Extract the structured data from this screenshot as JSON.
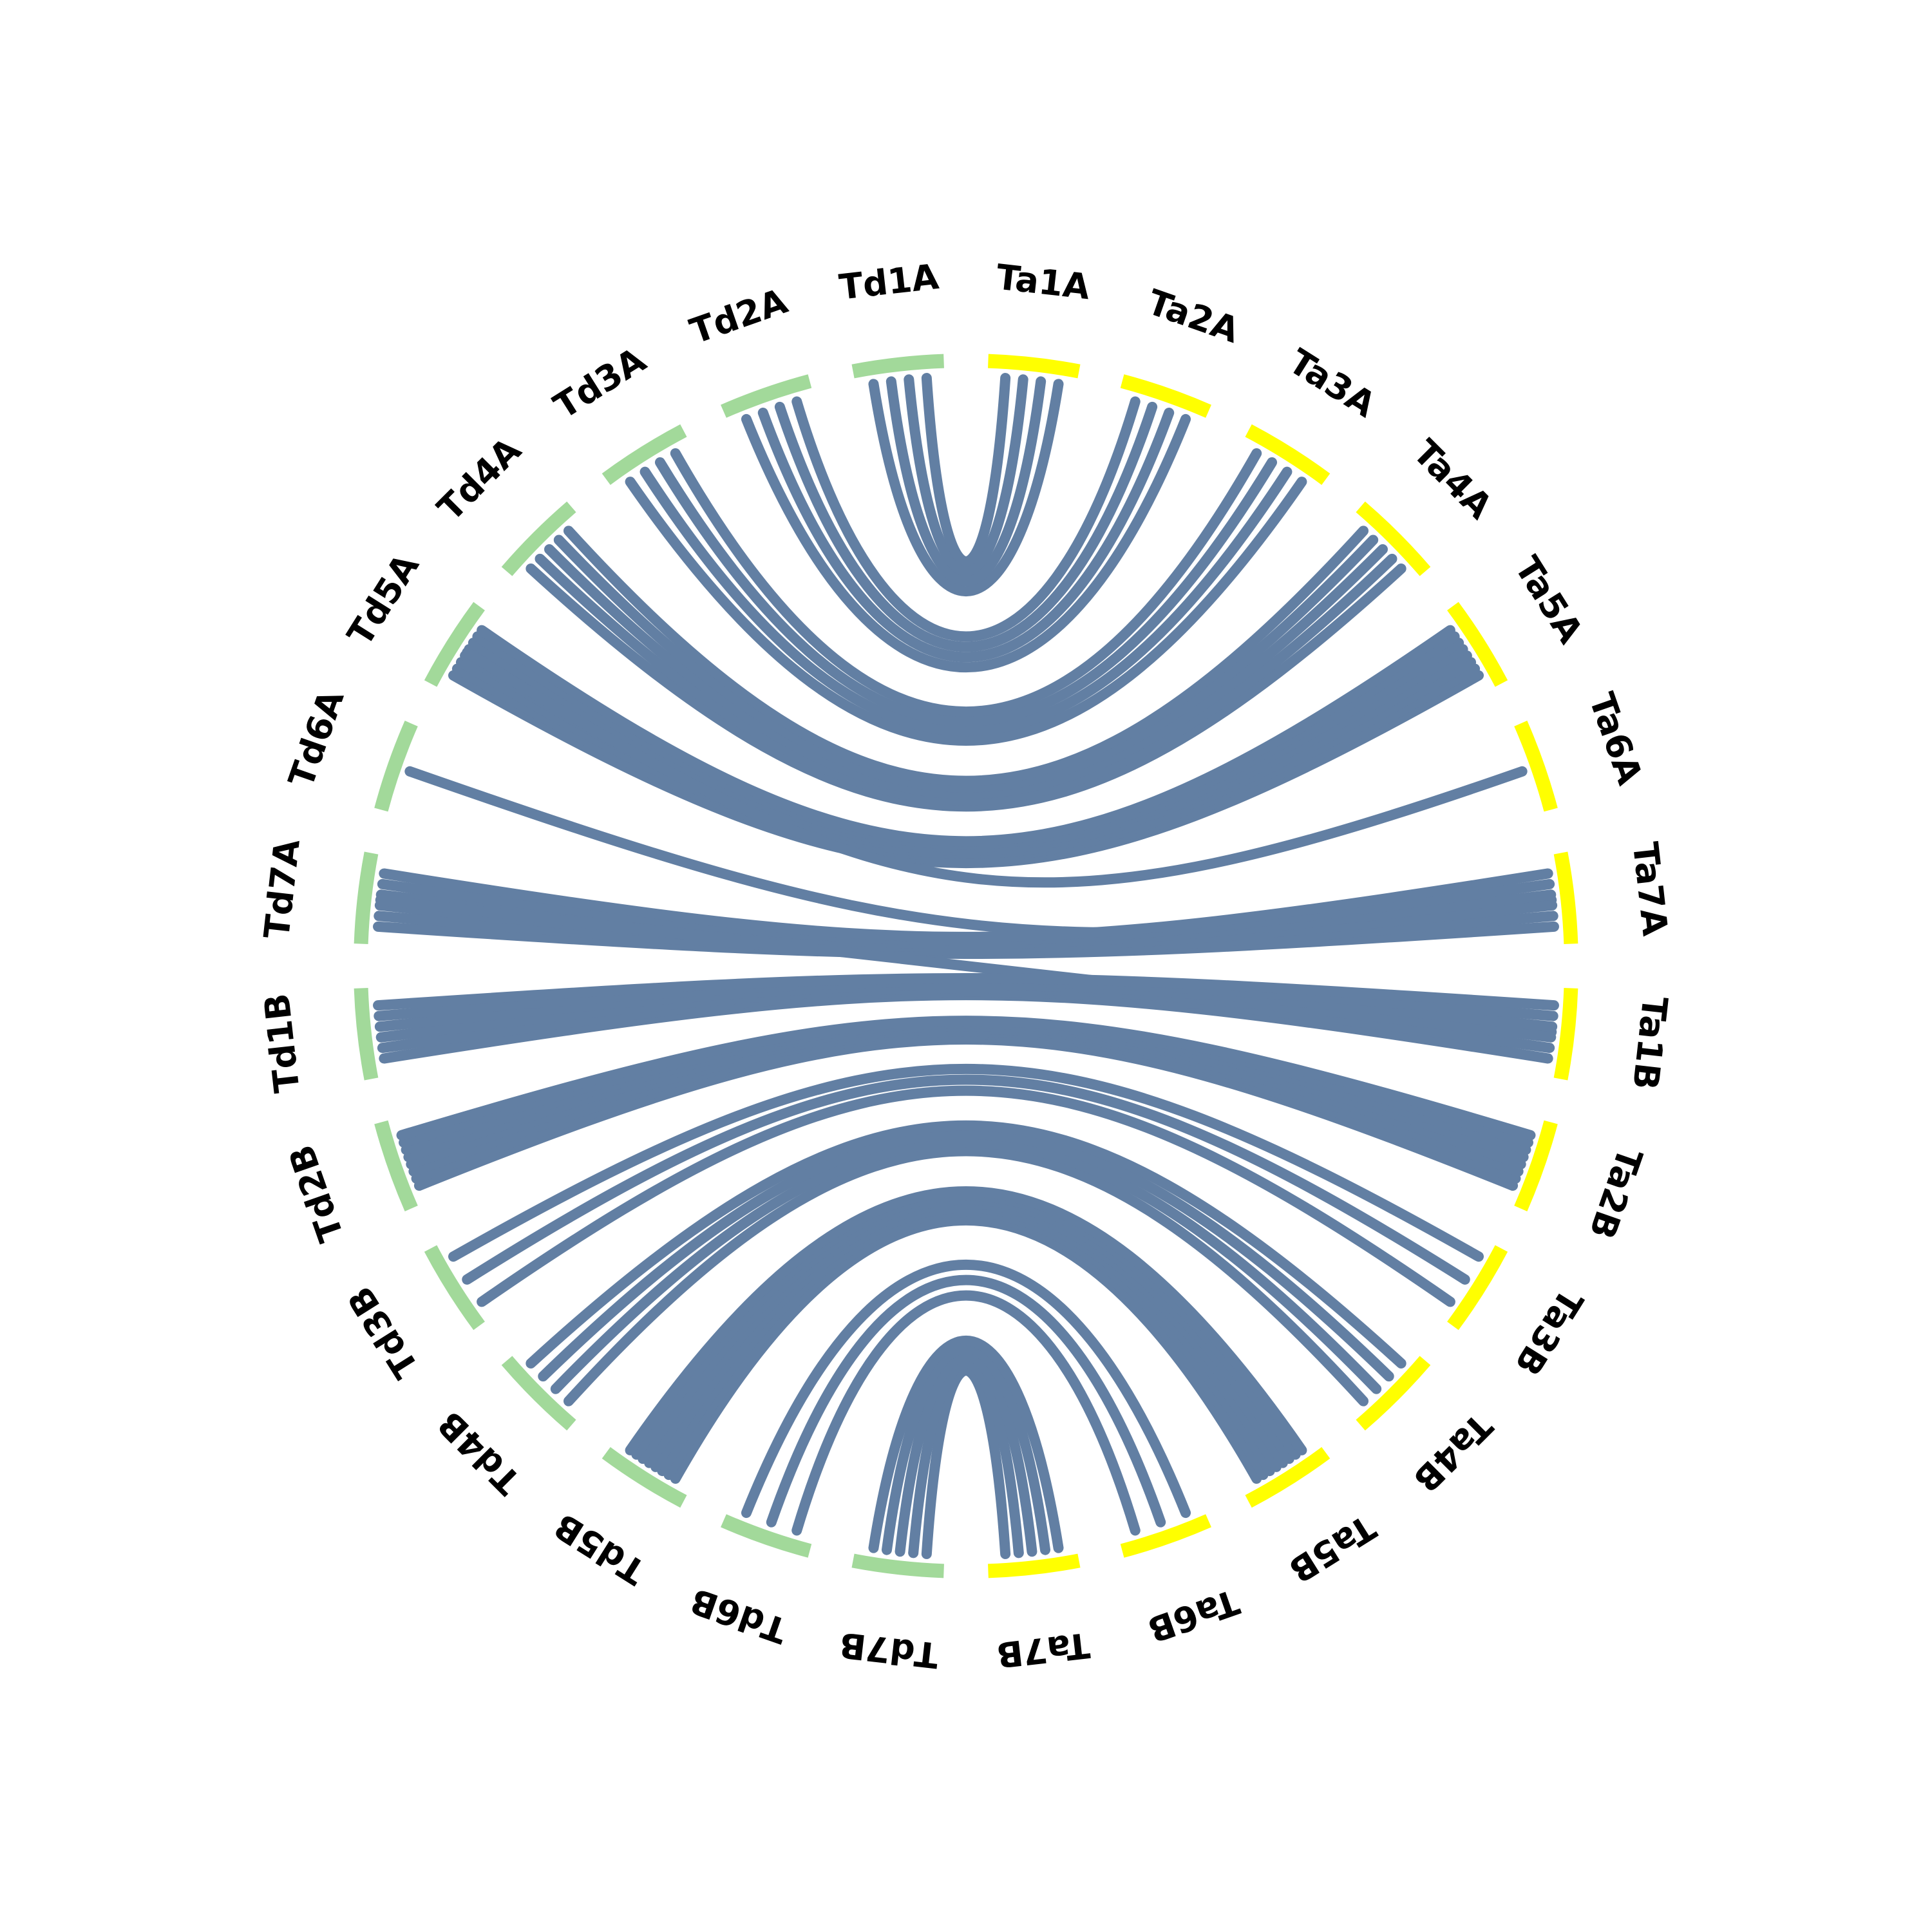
{
  "colors": {
    "genome_td": "#a2d99a",
    "genome_ta": "#ffff00",
    "link": "#627fa3",
    "background": "#ffffff"
  },
  "chart_data": {
    "type": "chord",
    "segments": [
      {
        "label": "Ta1A",
        "genome": "Ta"
      },
      {
        "label": "Ta2A",
        "genome": "Ta"
      },
      {
        "label": "Ta3A",
        "genome": "Ta"
      },
      {
        "label": "Ta4A",
        "genome": "Ta"
      },
      {
        "label": "Ta5A",
        "genome": "Ta"
      },
      {
        "label": "Ta6A",
        "genome": "Ta"
      },
      {
        "label": "Ta7A",
        "genome": "Ta"
      },
      {
        "label": "Ta1B",
        "genome": "Ta"
      },
      {
        "label": "Ta2B",
        "genome": "Ta"
      },
      {
        "label": "Ta3B",
        "genome": "Ta"
      },
      {
        "label": "Ta4B",
        "genome": "Ta"
      },
      {
        "label": "Ta5B",
        "genome": "Ta"
      },
      {
        "label": "Ta6B",
        "genome": "Ta"
      },
      {
        "label": "Ta7B",
        "genome": "Ta"
      },
      {
        "label": "Td7B",
        "genome": "Td"
      },
      {
        "label": "Td6B",
        "genome": "Td"
      },
      {
        "label": "Td5B",
        "genome": "Td"
      },
      {
        "label": "Td4B",
        "genome": "Td"
      },
      {
        "label": "Td3B",
        "genome": "Td"
      },
      {
        "label": "Td2B",
        "genome": "Td"
      },
      {
        "label": "Td1B",
        "genome": "Td"
      },
      {
        "label": "Td7A",
        "genome": "Td"
      },
      {
        "label": "Td6A",
        "genome": "Td"
      },
      {
        "label": "Td5A",
        "genome": "Td"
      },
      {
        "label": "Td4A",
        "genome": "Td"
      },
      {
        "label": "Td3A",
        "genome": "Td"
      },
      {
        "label": "Td2A",
        "genome": "Td"
      },
      {
        "label": "Td1A",
        "genome": "Td"
      }
    ],
    "links": [
      {
        "source": "Td1A",
        "target": "Ta1A",
        "count": 4
      },
      {
        "source": "Td2A",
        "target": "Ta2A",
        "count": 4
      },
      {
        "source": "Td3A",
        "target": "Ta3A",
        "count": 4
      },
      {
        "source": "Td4A",
        "target": "Ta4A",
        "count": 5
      },
      {
        "source": "Td5A",
        "target": "Ta5A",
        "count": 8
      },
      {
        "source": "Td5A",
        "target": "Ta6A",
        "count": 1
      },
      {
        "source": "Td6A",
        "target": "Ta7A",
        "count": 1
      },
      {
        "source": "Td7A",
        "target": "Ta7A",
        "count": 6
      },
      {
        "source": "Td7A",
        "target": "Ta1B",
        "count": 1
      },
      {
        "source": "Td1B",
        "target": "Ta1B",
        "count": 6
      },
      {
        "source": "Td2B",
        "target": "Ta2B",
        "count": 8
      },
      {
        "source": "Td3B",
        "target": "Ta3B",
        "count": 3
      },
      {
        "source": "Td4B",
        "target": "Ta4B",
        "count": 4
      },
      {
        "source": "Td5B",
        "target": "Ta5B",
        "count": 8
      },
      {
        "source": "Td6B",
        "target": "Ta6B",
        "count": 3
      },
      {
        "source": "Td7B",
        "target": "Ta7B",
        "count": 5
      }
    ]
  }
}
